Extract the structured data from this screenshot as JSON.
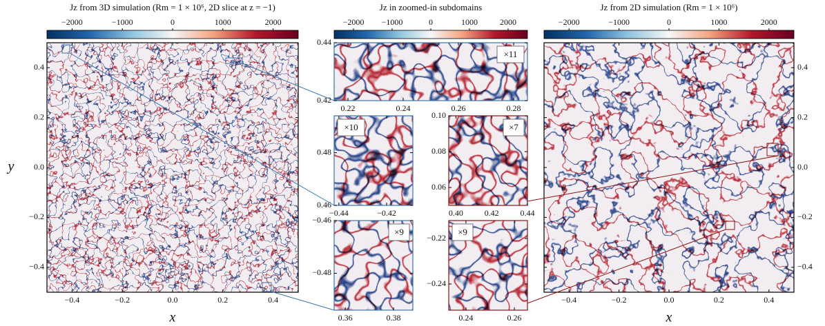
{
  "chart_data": [
    {
      "type": "heatmap",
      "title": "Jz from 3D simulation (Rm = 1 × 10⁶,  2D slice at z = −1)",
      "xlabel": "x",
      "ylabel": "y",
      "xlim": [
        -0.5,
        0.5
      ],
      "ylim": [
        -0.5,
        0.5
      ],
      "xticks": [
        {
          "value": -0.4,
          "label": "−0.4"
        },
        {
          "value": -0.2,
          "label": "−0.2"
        },
        {
          "value": 0,
          "label": "0.0"
        },
        0.2,
        0.4
      ],
      "yticks": [
        {
          "value": -0.4,
          "label": "−0.4"
        },
        {
          "value": -0.2,
          "label": "−0.2"
        },
        {
          "value": 0,
          "label": "0.0"
        },
        0.2,
        0.4
      ],
      "clim": [
        -2500,
        2500
      ],
      "cticks": [
        {
          "value": -2000,
          "label": "−2000"
        },
        {
          "value": -1000,
          "label": "−1000"
        },
        0,
        1000,
        2000
      ]
    },
    {
      "type": "heatmap",
      "title": "Jz in zoomed-in subdomains",
      "annotation": "×11",
      "xlim": [
        0.215,
        0.285
      ],
      "ylim": [
        0.42,
        0.44
      ],
      "xticks": [
        0.22,
        0.24,
        0.26,
        0.28
      ],
      "yticks": [
        0.42,
        0.44
      ],
      "clim": [
        -2500,
        2500
      ],
      "cticks": [
        {
          "value": -2000,
          "label": "−2000"
        },
        {
          "value": -1000,
          "label": "−1000"
        },
        0,
        1000,
        2000
      ]
    },
    {
      "type": "heatmap",
      "annotation": "×10",
      "xlim": [
        -0.442,
        -0.409
      ],
      "ylim": [
        0.46,
        0.494
      ],
      "xticks": [
        {
          "value": -0.44,
          "label": "−0.44"
        },
        {
          "value": -0.42,
          "label": "−0.42"
        }
      ],
      "yticks": [
        0.46,
        0.48
      ]
    },
    {
      "type": "heatmap",
      "annotation": "×7",
      "xlim": [
        0.396,
        0.44
      ],
      "ylim": [
        0.05,
        0.1
      ],
      "xticks": [
        {
          "value": 0.4,
          "label": "0.40"
        },
        0.42,
        0.44
      ],
      "yticks": [
        0.06,
        0.08,
        {
          "value": 0.1,
          "label": "0.10"
        }
      ]
    },
    {
      "type": "heatmap",
      "annotation": "×9",
      "xlim": [
        0.3554,
        0.388
      ],
      "ylim": [
        -0.494,
        -0.46
      ],
      "xticks": [
        0.36,
        0.38
      ],
      "yticks": [
        {
          "value": -0.48,
          "label": "−0.48"
        },
        {
          "value": -0.46,
          "label": "−0.46"
        }
      ]
    },
    {
      "type": "heatmap",
      "annotation": "×9",
      "xlim": [
        0.2329,
        0.2654
      ],
      "ylim": [
        -0.2515,
        -0.2121
      ],
      "xticks": [
        0.24,
        0.26
      ],
      "yticks": [
        {
          "value": -0.24,
          "label": "−0.24"
        },
        {
          "value": -0.22,
          "label": "−0.22"
        }
      ]
    },
    {
      "type": "heatmap",
      "title": "Jz from 2D simulation (Rm = 1 × 10⁶)",
      "xlabel": "x",
      "xlim": [
        -0.5,
        0.5
      ],
      "ylim": [
        -0.5,
        0.5
      ],
      "xticks": [
        {
          "value": -0.4,
          "label": "−0.4"
        },
        {
          "value": -0.2,
          "label": "−0.2"
        },
        {
          "value": 0,
          "label": "0.0"
        },
        0.2,
        0.4
      ],
      "yticks": [
        {
          "value": -0.4,
          "label": "−0.4"
        },
        {
          "value": -0.2,
          "label": "−0.2"
        },
        {
          "value": 0,
          "label": "0.0"
        },
        0.2,
        0.4
      ],
      "clim": [
        -2500,
        2500
      ],
      "cticks": [
        {
          "value": -2000,
          "label": "−2000"
        },
        {
          "value": -1000,
          "label": "−1000"
        },
        0,
        1000,
        2000
      ]
    }
  ]
}
